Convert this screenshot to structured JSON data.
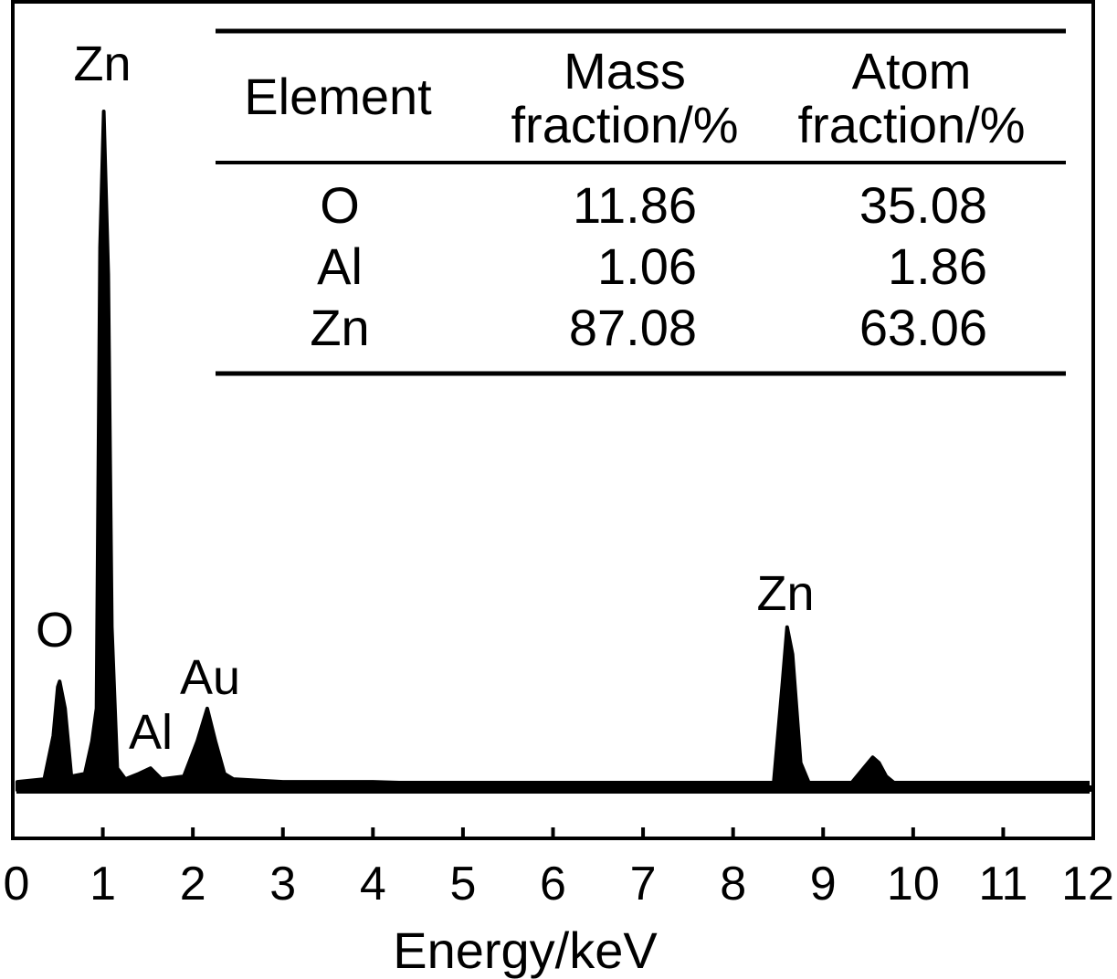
{
  "chart_data": {
    "type": "line",
    "xlabel": "Energy/keV",
    "ylabel": "",
    "xlim": [
      0,
      12
    ],
    "x_ticks": [
      "0",
      "1",
      "2",
      "3",
      "4",
      "5",
      "6",
      "7",
      "8",
      "9",
      "10",
      "11",
      "12"
    ],
    "grid": false,
    "series": [
      {
        "x": [
          0.05,
          0.35,
          0.45,
          0.5,
          0.52,
          0.58,
          0.65,
          0.8,
          0.88,
          0.93,
          0.97,
          1.01,
          1.06,
          1.1,
          1.16,
          1.25,
          1.4,
          1.53,
          1.65,
          1.9,
          2.05,
          2.16,
          2.25,
          2.35,
          2.45,
          3.0,
          4.0,
          5.0,
          6.0,
          7.0,
          8.0,
          8.45,
          8.55,
          8.6,
          8.66,
          8.75,
          8.85,
          9.3,
          9.45,
          9.55,
          9.62,
          9.7,
          9.85,
          10.5,
          11.0,
          11.5,
          11.97
        ],
        "y": [
          3,
          4,
          20,
          38,
          40,
          30,
          5,
          6,
          18,
          30,
          200,
          250,
          190,
          60,
          8,
          4,
          6,
          8,
          4,
          5,
          18,
          30,
          18,
          6,
          4,
          3,
          3,
          2,
          2,
          2,
          2,
          2,
          40,
          60,
          50,
          10,
          2,
          2,
          8,
          12,
          10,
          5,
          1,
          1,
          1,
          1,
          1
        ]
      }
    ],
    "peak_labels": [
      "Zn",
      "O",
      "Al",
      "Au",
      "Zn"
    ],
    "table": {
      "headers": [
        [
          "Element"
        ],
        [
          "Mass",
          "fraction/%"
        ],
        [
          "Atom",
          "fraction/%"
        ]
      ],
      "rows": [
        [
          "O",
          "11.86",
          "35.08"
        ],
        [
          "Al",
          "1.06",
          "1.86"
        ],
        [
          "Zn",
          "87.08",
          "63.06"
        ]
      ]
    }
  }
}
